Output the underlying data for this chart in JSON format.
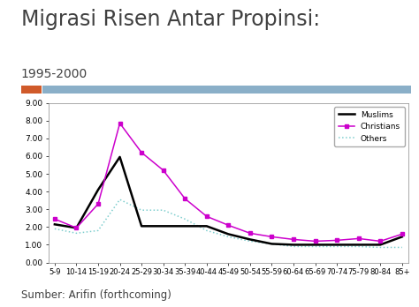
{
  "title": "Migrasi Risen Antar Propinsi:",
  "subtitle": "1995-2000",
  "source": "Sumber: Arifin (forthcoming)",
  "categories": [
    "5-9",
    "10-14",
    "15-19",
    "20-24",
    "25-29",
    "30-34",
    "35-39",
    "40-44",
    "45-49",
    "50-54",
    "55-59",
    "60-64",
    "65-69",
    "70-74",
    "75-79",
    "80-84",
    "85+"
  ],
  "muslims": [
    2.15,
    1.95,
    4.1,
    5.95,
    2.05,
    2.05,
    2.05,
    2.05,
    1.6,
    1.3,
    1.05,
    1.0,
    1.0,
    1.0,
    1.0,
    1.0,
    1.45
  ],
  "christians": [
    2.45,
    1.95,
    3.3,
    7.85,
    6.2,
    5.2,
    3.6,
    2.6,
    2.1,
    1.65,
    1.45,
    1.3,
    1.2,
    1.25,
    1.35,
    1.2,
    1.6
  ],
  "others": [
    1.9,
    1.65,
    1.8,
    3.55,
    2.95,
    2.95,
    2.45,
    1.8,
    1.45,
    1.2,
    1.05,
    0.9,
    0.9,
    0.9,
    0.9,
    0.85,
    0.85
  ],
  "ylim": [
    0.0,
    9.0
  ],
  "yticks": [
    0.0,
    1.0,
    2.0,
    3.0,
    4.0,
    5.0,
    6.0,
    7.0,
    8.0,
    9.0
  ],
  "muslims_color": "#000000",
  "christians_color": "#cc00cc",
  "others_color": "#7ecece",
  "bg_color": "#ffffff",
  "header_bar_color1": "#d05a2a",
  "header_bar_color2": "#8aafc8",
  "title_color": "#404040",
  "title_fontsize": 17,
  "subtitle_fontsize": 10,
  "source_fontsize": 8.5
}
